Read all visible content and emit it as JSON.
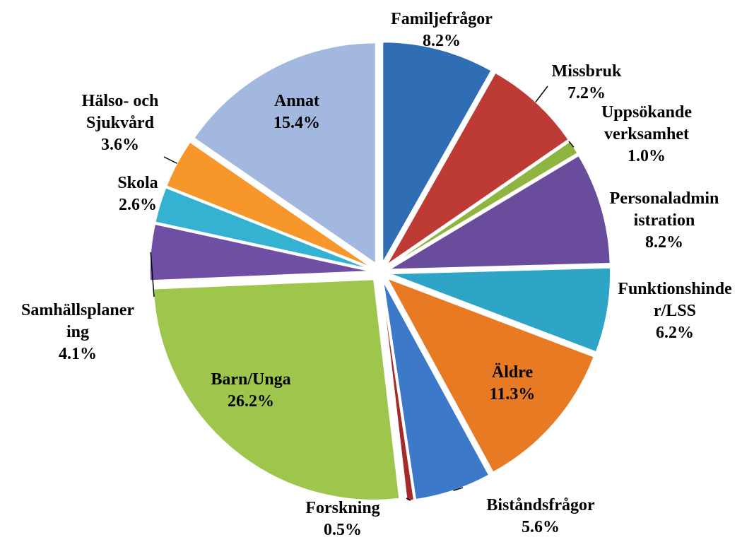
{
  "chart_data": {
    "type": "pie",
    "categories": [
      "Familjefrågor",
      "Missbruk",
      "Uppsökande verksamhet",
      "Personaladministration",
      "Funktionshinder/LSS",
      "Äldre",
      "Biståndsfrågor",
      "Forskning",
      "Barn/Unga",
      "Samhällsplanering",
      "Skola",
      "Hälso- och Sjukvård",
      "Annat"
    ],
    "values": [
      8.2,
      7.2,
      1.0,
      8.2,
      6.2,
      11.3,
      5.6,
      0.5,
      26.2,
      4.1,
      2.6,
      3.6,
      15.4
    ],
    "value_labels": [
      "8.2%",
      "7.2%",
      "1.0%",
      "8.2%",
      "6.2%",
      "11.3%",
      "5.6%",
      "0.5%",
      "26.2%",
      "4.1%",
      "2.6%",
      "3.6%",
      "15.4%"
    ],
    "colors": [
      "#2f6db5",
      "#be3a35",
      "#8fb43f",
      "#6a4c9c",
      "#2ea5c6",
      "#e77a22",
      "#3c79c9",
      "#a52a2a",
      "#9ec54c",
      "#6f4fa3",
      "#33b2d2",
      "#f7962b",
      "#a3b8df"
    ]
  }
}
